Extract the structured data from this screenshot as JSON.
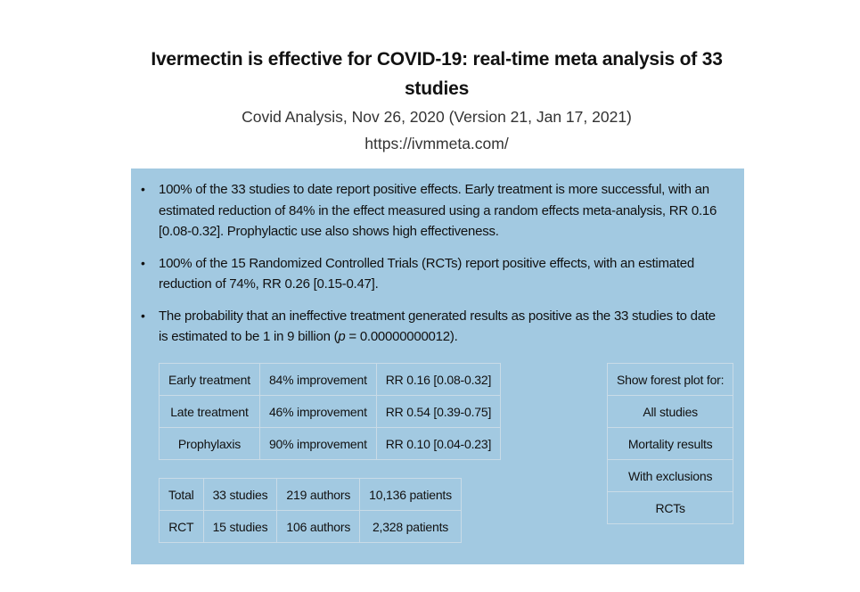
{
  "header": {
    "title_line1": "Ivermectin is effective for COVID-19: real-time meta analysis of 33",
    "title_line2": "studies",
    "subtitle": "Covid Analysis, Nov 26, 2020 (Version 21, Jan 17, 2021)",
    "url": "https://ivmmeta.com/"
  },
  "summary": {
    "bullet1": "100% of the 33 studies to date report positive effects. Early treatment is more successful, with an estimated reduction of 84% in the effect measured using a random effects meta-analysis, RR 0.16 [0.08-0.32]. Prophylactic use also shows high effectiveness.",
    "bullet2": "100% of the 15 Randomized Controlled Trials (RCTs) report positive effects, with an estimated reduction of 74%, RR 0.26 [0.15-0.47].",
    "bullet3_pre": "The probability that an ineffective treatment generated results as positive as the 33 studies to date is estimated to be 1 in 9 billion (",
    "bullet3_p": "p",
    "bullet3_post": " = 0.00000000012)."
  },
  "effects_table": [
    {
      "label": "Early treatment",
      "improvement": "84% improvement",
      "rr": "RR 0.16 [0.08-0.32]"
    },
    {
      "label": "Late treatment",
      "improvement": "46% improvement",
      "rr": "RR 0.54 [0.39-0.75]"
    },
    {
      "label": "Prophylaxis",
      "improvement": "90% improvement",
      "rr": "RR 0.10 [0.04-0.23]"
    }
  ],
  "totals_table": [
    {
      "label": "Total",
      "studies": "33 studies",
      "authors": "219 authors",
      "patients": "10,136 patients"
    },
    {
      "label": "RCT",
      "studies": "15 studies",
      "authors": "106 authors",
      "patients": "2,328 patients"
    }
  ],
  "forest_plot": {
    "header": "Show forest plot for:",
    "options": [
      "All studies",
      "Mortality results",
      "With exclusions",
      "RCTs"
    ]
  },
  "colors": {
    "panel_background": "#a2c9e1",
    "cell_border": "#c9dbe7"
  }
}
